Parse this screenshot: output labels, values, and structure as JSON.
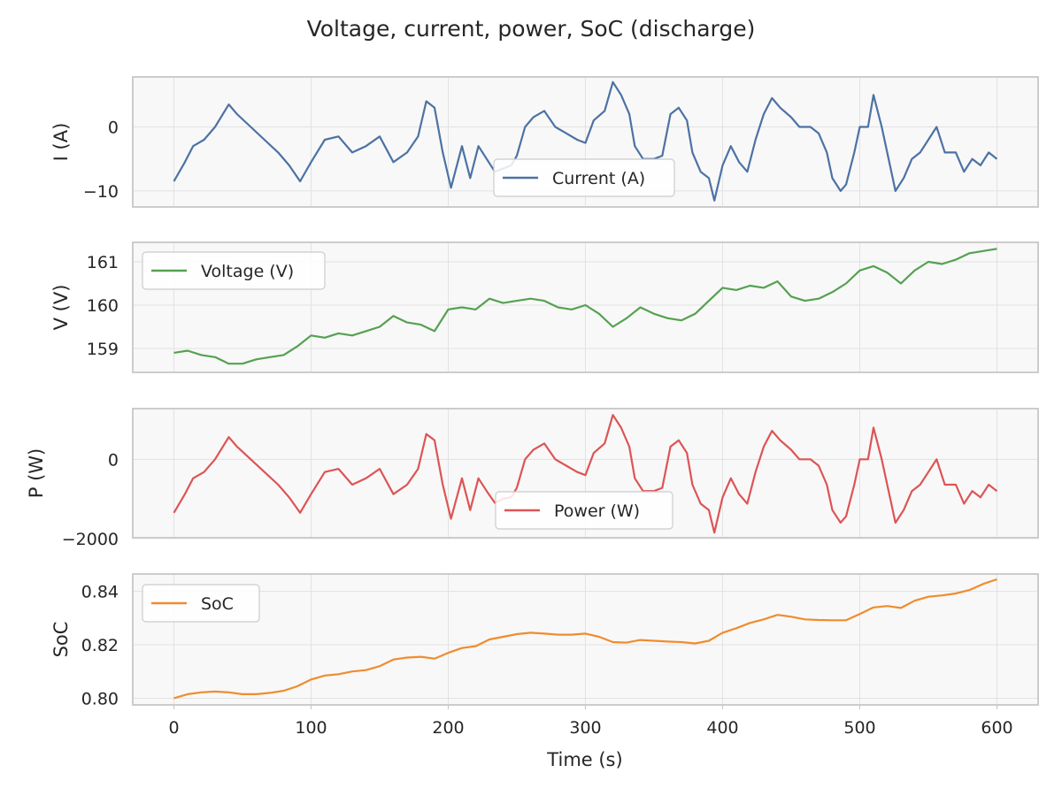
{
  "title": "Voltage, current, power, SoC (discharge)",
  "xlabel": "Time (s)",
  "x_ticks": [
    "0",
    "100",
    "200",
    "300",
    "400",
    "500",
    "600"
  ],
  "chart_data": [
    {
      "type": "line",
      "ylabel": "I (A)",
      "xlim": [
        -30,
        630
      ],
      "ylim": [
        -12.5,
        7.8
      ],
      "yticks": [
        0,
        -10
      ],
      "ytick_labels": [
        "0",
        "−10"
      ],
      "legend": "bottom-center",
      "series": [
        {
          "name": "Current (A)",
          "color": "#4c72a4",
          "x": [
            0,
            8,
            14,
            22,
            30,
            40,
            46,
            56,
            66,
            76,
            84,
            92,
            100,
            110,
            120,
            130,
            140,
            150,
            160,
            170,
            178,
            184,
            190,
            196,
            202,
            210,
            216,
            222,
            228,
            234,
            240,
            246,
            250,
            256,
            262,
            270,
            278,
            286,
            294,
            300,
            306,
            314,
            320,
            326,
            332,
            336,
            342,
            350,
            356,
            362,
            368,
            374,
            378,
            384,
            390,
            394,
            400,
            406,
            412,
            418,
            424,
            430,
            436,
            442,
            450,
            456,
            464,
            470,
            476,
            480,
            486,
            490,
            496,
            500,
            506,
            510,
            516,
            522,
            526,
            532,
            538,
            544,
            550,
            556,
            562,
            570,
            576,
            582,
            588,
            594,
            600
          ],
          "y": [
            -8.5,
            -5.5,
            -3,
            -2,
            0,
            3.5,
            2,
            0,
            -2,
            -4,
            -6,
            -8.5,
            -5.5,
            -2,
            -1.5,
            -4,
            -3,
            -1.5,
            -5.5,
            -4,
            -1.5,
            4,
            3,
            -4,
            -9.5,
            -3,
            -8,
            -3,
            -5,
            -7,
            -6.5,
            -6,
            -4.5,
            0,
            1.5,
            2.5,
            0,
            -1,
            -2,
            -2.5,
            1,
            2.5,
            7,
            5,
            2,
            -3,
            -5,
            -5,
            -4.5,
            2,
            3,
            1,
            -4,
            -7,
            -8,
            -11.5,
            -6,
            -3,
            -5.5,
            -7,
            -2,
            2,
            4.5,
            3,
            1.5,
            0,
            0,
            -1,
            -4,
            -8,
            -10,
            -9,
            -4,
            0,
            0,
            5,
            0,
            -6,
            -10,
            -8,
            -5,
            -4,
            -2,
            0,
            -4,
            -4,
            -7,
            -5,
            -6,
            -4,
            -5
          ]
        }
      ]
    },
    {
      "type": "line",
      "ylabel": "V (V)",
      "xlim": [
        -30,
        630
      ],
      "ylim": [
        158.45,
        161.45
      ],
      "yticks": [
        161,
        160,
        159
      ],
      "ytick_labels": [
        "161",
        "160",
        "159"
      ],
      "legend": "upper-left",
      "series": [
        {
          "name": "Voltage (V)",
          "color": "#55a151",
          "x": [
            0,
            10,
            20,
            30,
            40,
            50,
            60,
            70,
            80,
            90,
            100,
            110,
            120,
            130,
            140,
            150,
            160,
            170,
            180,
            190,
            200,
            210,
            220,
            230,
            240,
            250,
            260,
            270,
            280,
            290,
            300,
            310,
            320,
            330,
            340,
            350,
            360,
            370,
            380,
            390,
            400,
            410,
            420,
            430,
            440,
            450,
            460,
            470,
            480,
            490,
            500,
            510,
            520,
            530,
            540,
            550,
            560,
            570,
            580,
            590,
            600
          ],
          "y": [
            158.9,
            158.95,
            158.85,
            158.8,
            158.65,
            158.65,
            158.75,
            158.8,
            158.85,
            159.05,
            159.3,
            159.25,
            159.35,
            159.3,
            159.4,
            159.5,
            159.75,
            159.6,
            159.55,
            159.4,
            159.9,
            159.95,
            159.9,
            160.15,
            160.05,
            160.1,
            160.15,
            160.1,
            159.95,
            159.9,
            160.0,
            159.8,
            159.5,
            159.7,
            159.95,
            159.8,
            159.7,
            159.65,
            159.8,
            160.1,
            160.4,
            160.35,
            160.45,
            160.4,
            160.55,
            160.2,
            160.1,
            160.15,
            160.3,
            160.5,
            160.8,
            160.9,
            160.75,
            160.5,
            160.8,
            161.0,
            160.95,
            161.05,
            161.2,
            161.25,
            161.3
          ]
        }
      ]
    },
    {
      "type": "line",
      "ylabel": "P (W)",
      "xlim": [
        -30,
        630
      ],
      "ylim": [
        -1980,
        1280
      ],
      "yticks": [
        0,
        -2000
      ],
      "ytick_labels": [
        "0",
        "−2000"
      ],
      "legend": "bottom-center",
      "series": [
        {
          "name": "Power (W)",
          "color": "#dd5455",
          "x": [
            0,
            8,
            14,
            22,
            30,
            40,
            46,
            56,
            66,
            76,
            84,
            92,
            100,
            110,
            120,
            130,
            140,
            150,
            160,
            170,
            178,
            184,
            190,
            196,
            202,
            210,
            216,
            222,
            228,
            234,
            240,
            246,
            250,
            256,
            262,
            270,
            278,
            286,
            294,
            300,
            306,
            314,
            320,
            326,
            332,
            336,
            342,
            350,
            356,
            362,
            368,
            374,
            378,
            384,
            390,
            394,
            400,
            406,
            412,
            418,
            424,
            430,
            436,
            442,
            450,
            456,
            464,
            470,
            476,
            480,
            486,
            490,
            496,
            500,
            506,
            510,
            516,
            522,
            526,
            532,
            538,
            544,
            550,
            556,
            562,
            570,
            576,
            582,
            588,
            594,
            600
          ],
          "y": [
            -1350,
            -880,
            -480,
            -320,
            0,
            560,
            320,
            0,
            -320,
            -640,
            -960,
            -1350,
            -880,
            -320,
            -240,
            -640,
            -480,
            -240,
            -880,
            -640,
            -240,
            640,
            480,
            -640,
            -1500,
            -480,
            -1280,
            -480,
            -800,
            -1100,
            -1000,
            -950,
            -720,
            0,
            240,
            400,
            0,
            -160,
            -320,
            -400,
            160,
            400,
            1120,
            800,
            320,
            -480,
            -800,
            -800,
            -720,
            320,
            480,
            160,
            -640,
            -1120,
            -1280,
            -1850,
            -960,
            -480,
            -880,
            -1120,
            -320,
            320,
            720,
            480,
            240,
            0,
            0,
            -160,
            -640,
            -1280,
            -1600,
            -1440,
            -640,
            0,
            0,
            800,
            0,
            -960,
            -1600,
            -1280,
            -800,
            -640,
            -320,
            0,
            -640,
            -640,
            -1120,
            -800,
            -960,
            -640,
            -800
          ]
        }
      ]
    },
    {
      "type": "line",
      "ylabel": "SoC",
      "xlim": [
        -30,
        630
      ],
      "ylim": [
        0.7975,
        0.8465
      ],
      "yticks": [
        0.84,
        0.82,
        0.8
      ],
      "ytick_labels": [
        "0.84",
        "0.82",
        "0.80"
      ],
      "legend": "upper-left",
      "series": [
        {
          "name": "SoC",
          "color": "#f08c2e",
          "x": [
            0,
            10,
            20,
            30,
            40,
            50,
            60,
            70,
            80,
            90,
            100,
            110,
            120,
            130,
            140,
            150,
            160,
            170,
            180,
            190,
            200,
            210,
            220,
            230,
            240,
            250,
            260,
            270,
            280,
            290,
            300,
            310,
            320,
            330,
            340,
            350,
            360,
            370,
            380,
            390,
            400,
            410,
            420,
            430,
            440,
            450,
            460,
            470,
            480,
            490,
            500,
            510,
            520,
            530,
            540,
            550,
            560,
            570,
            580,
            590,
            600
          ],
          "y": [
            0.8,
            0.8015,
            0.8022,
            0.8025,
            0.8022,
            0.8015,
            0.8015,
            0.802,
            0.8028,
            0.8045,
            0.807,
            0.8085,
            0.809,
            0.81,
            0.8105,
            0.812,
            0.8145,
            0.8152,
            0.8155,
            0.8148,
            0.817,
            0.8188,
            0.8195,
            0.822,
            0.823,
            0.824,
            0.8245,
            0.8242,
            0.8238,
            0.8238,
            0.8242,
            0.823,
            0.821,
            0.8208,
            0.8218,
            0.8215,
            0.8212,
            0.821,
            0.8205,
            0.8215,
            0.8245,
            0.8262,
            0.8282,
            0.8295,
            0.8312,
            0.8305,
            0.8295,
            0.8293,
            0.8292,
            0.8292,
            0.8315,
            0.834,
            0.8345,
            0.8338,
            0.8365,
            0.838,
            0.8385,
            0.8392,
            0.8405,
            0.8428,
            0.8445
          ]
        }
      ]
    }
  ]
}
